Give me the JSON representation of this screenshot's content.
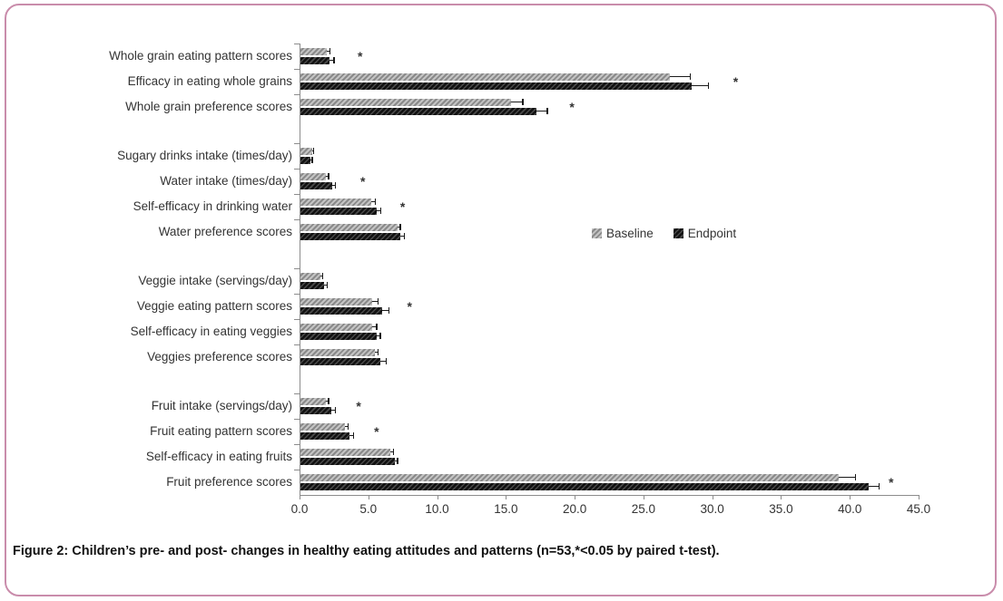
{
  "caption": "Figure 2: Children’s pre- and post- changes in healthy eating attitudes and patterns (n=53,*<0.05 by paired t-test).",
  "significance_marker": "*",
  "colors": {
    "frame_border": "#c98cab",
    "axis": "#8c8c8c",
    "baseline_bar": "#a5a5a5",
    "endpoint_bar": "#1a1a1a",
    "error_bar": "#1a1a1a",
    "text": "#333333"
  },
  "chart_data": {
    "type": "bar",
    "orientation": "horizontal",
    "title": "",
    "xlabel": "",
    "ylabel": "",
    "xlim": [
      0,
      45
    ],
    "x_ticks": [
      "0.0",
      "5.0",
      "10.0",
      "15.0",
      "20.0",
      "25.0",
      "30.0",
      "35.0",
      "40.0",
      "45.0"
    ],
    "grid": false,
    "legend_position": "center-right-inside-plot",
    "series": [
      {
        "name": "Baseline"
      },
      {
        "name": "Endpoint"
      }
    ],
    "groups": [
      {
        "rows": [
          {
            "label": "Whole grain eating pattern scores",
            "baseline": 2.0,
            "endpoint": 2.2,
            "baseline_err": 0.2,
            "endpoint_err": 0.3,
            "significant": true,
            "star_x": 4.4
          },
          {
            "label": "Efficacy in eating whole grains",
            "baseline": 26.9,
            "endpoint": 28.5,
            "baseline_err": 1.5,
            "endpoint_err": 1.2,
            "significant": true,
            "star_x": 31.7
          },
          {
            "label": "Whole grain preference scores",
            "baseline": 15.4,
            "endpoint": 17.2,
            "baseline_err": 0.8,
            "endpoint_err": 0.8,
            "significant": true,
            "star_x": 19.8
          }
        ]
      },
      {
        "rows": [
          {
            "label": "Sugary drinks intake (times/day)",
            "baseline": 0.9,
            "endpoint": 0.8,
            "baseline_err": 0.1,
            "endpoint_err": 0.1,
            "significant": false,
            "star_x": null
          },
          {
            "label": "Water intake (times/day)",
            "baseline": 1.9,
            "endpoint": 2.4,
            "baseline_err": 0.2,
            "endpoint_err": 0.2,
            "significant": true,
            "star_x": 4.6
          },
          {
            "label": "Self-efficacy in drinking water",
            "baseline": 5.2,
            "endpoint": 5.6,
            "baseline_err": 0.3,
            "endpoint_err": 0.3,
            "significant": true,
            "star_x": 7.5
          },
          {
            "label": "Water preference scores",
            "baseline": 7.1,
            "endpoint": 7.3,
            "baseline_err": 0.2,
            "endpoint_err": 0.3,
            "significant": false,
            "star_x": null
          }
        ]
      },
      {
        "rows": [
          {
            "label": "Veggie intake (servings/day)",
            "baseline": 1.5,
            "endpoint": 1.8,
            "baseline_err": 0.15,
            "endpoint_err": 0.2,
            "significant": false,
            "star_x": null
          },
          {
            "label": "Veggie eating pattern scores",
            "baseline": 5.3,
            "endpoint": 6.0,
            "baseline_err": 0.4,
            "endpoint_err": 0.5,
            "significant": true,
            "star_x": 8.0
          },
          {
            "label": "Self-efficacy in eating veggies",
            "baseline": 5.3,
            "endpoint": 5.6,
            "baseline_err": 0.3,
            "endpoint_err": 0.25,
            "significant": false,
            "star_x": null
          },
          {
            "label": "Veggies preference scores",
            "baseline": 5.5,
            "endpoint": 5.9,
            "baseline_err": 0.2,
            "endpoint_err": 0.4,
            "significant": false,
            "star_x": null
          }
        ]
      },
      {
        "rows": [
          {
            "label": "Fruit intake (servings/day)",
            "baseline": 1.9,
            "endpoint": 2.3,
            "baseline_err": 0.2,
            "endpoint_err": 0.3,
            "significant": true,
            "star_x": 4.3
          },
          {
            "label": "Fruit eating pattern scores",
            "baseline": 3.3,
            "endpoint": 3.6,
            "baseline_err": 0.2,
            "endpoint_err": 0.3,
            "significant": true,
            "star_x": 5.6
          },
          {
            "label": "Self-efficacy in eating fruits",
            "baseline": 6.6,
            "endpoint": 6.9,
            "baseline_err": 0.2,
            "endpoint_err": 0.2,
            "significant": false,
            "star_x": null
          },
          {
            "label": "Fruit preference scores",
            "baseline": 39.2,
            "endpoint": 41.4,
            "baseline_err": 1.2,
            "endpoint_err": 0.7,
            "significant": true,
            "star_x": 43.0
          }
        ]
      }
    ]
  }
}
